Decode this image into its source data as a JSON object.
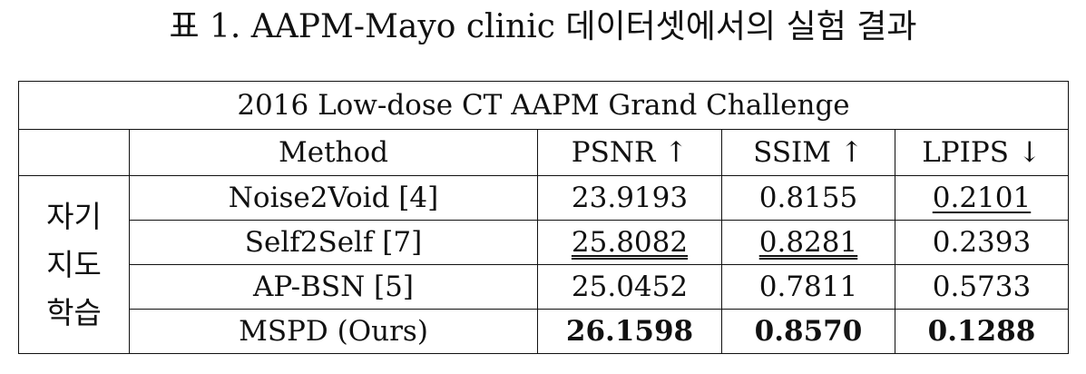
{
  "caption": "표 1. AAPM-Mayo clinic 데이터셋에서의 실험 결과",
  "table": {
    "title": "2016 Low-dose CT AAPM Grand Challenge",
    "headers": {
      "method": "Method",
      "psnr": "PSNR ↑",
      "ssim": "SSIM ↑",
      "lpips": "LPIPS  ↓"
    },
    "section_label": {
      "line1": "자기",
      "line2": "지도",
      "line3": "학습"
    },
    "rows": [
      {
        "method": "Noise2Void [4]",
        "psnr": "23.9193",
        "ssim": "0.8155",
        "lpips": "0.2101"
      },
      {
        "method": "Self2Self [7]",
        "psnr": "25.8082",
        "ssim": "0.8281",
        "lpips": "0.2393"
      },
      {
        "method": "AP-BSN [5]",
        "psnr": "25.0452",
        "ssim": "0.7811",
        "lpips": "0.5733"
      },
      {
        "method": "MSPD (Ours)",
        "psnr": "26.1598",
        "ssim": "0.8570",
        "lpips": "0.1288"
      }
    ],
    "emphasis": {
      "best": "bold",
      "second_best": "underline",
      "double_underline_cells": [
        "Self2Self PSNR",
        "Self2Self SSIM"
      ],
      "single_underline_cells": [
        "Noise2Void LPIPS"
      ],
      "bold_cells": [
        "MSPD PSNR",
        "MSPD SSIM",
        "MSPD LPIPS"
      ]
    }
  }
}
